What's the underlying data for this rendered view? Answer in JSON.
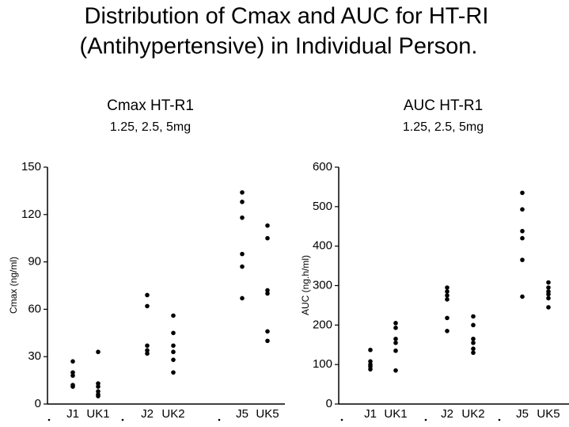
{
  "title": [
    "Distribution of Cmax and AUC for HT-RI",
    "(Antihypertensive)  in Individual Person."
  ],
  "chart_data": [
    {
      "type": "dot",
      "title": "Cmax HT-R1",
      "subtitle": "1.25,  2.5,  5mg",
      "ylabel": "Cmax  (ng/ml)",
      "categories": [
        "J1",
        "UK1",
        "J2",
        "UK2",
        "J5",
        "UK5"
      ],
      "values": [
        [
          27,
          20,
          18,
          12,
          11
        ],
        [
          33,
          13,
          11,
          8,
          6,
          5
        ],
        [
          69,
          62,
          37,
          34,
          32
        ],
        [
          56,
          45,
          37,
          33,
          28,
          20
        ],
        [
          134,
          128,
          118,
          95,
          87,
          67
        ],
        [
          113,
          105,
          72,
          70,
          46,
          40
        ]
      ],
      "color": "#000000",
      "ylim": [
        0,
        150
      ],
      "yticks": [
        0,
        30,
        60,
        90,
        120,
        150
      ]
    },
    {
      "type": "dot",
      "title": "AUC HT-R1",
      "subtitle": "1.25,  2.5,  5mg",
      "ylabel": "AUC  (ng.h/ml)",
      "categories": [
        "J1",
        "UK1",
        "J2",
        "UK2",
        "J5",
        "UK5"
      ],
      "values": [
        [
          137,
          108,
          100,
          95,
          88
        ],
        [
          205,
          193,
          165,
          155,
          135,
          85
        ],
        [
          295,
          285,
          275,
          265,
          218,
          185
        ],
        [
          222,
          200,
          165,
          155,
          140,
          130
        ],
        [
          535,
          493,
          438,
          420,
          365,
          272
        ],
        [
          308,
          295,
          285,
          278,
          268,
          245
        ]
      ],
      "color": "#000000",
      "ylim": [
        0,
        600
      ],
      "yticks": [
        0,
        100,
        200,
        300,
        400,
        500,
        600
      ]
    }
  ]
}
